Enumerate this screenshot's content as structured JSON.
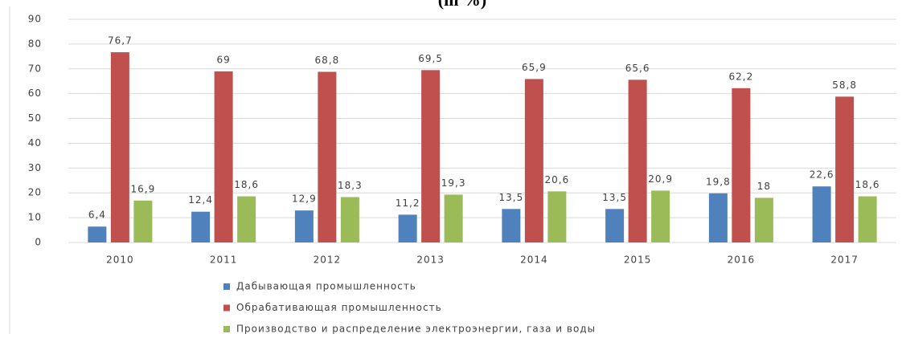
{
  "chart_data": {
    "type": "bar",
    "title": "(in %)",
    "categories": [
      "2010",
      "2011",
      "2012",
      "2013",
      "2014",
      "2015",
      "2016",
      "2017"
    ],
    "series": [
      {
        "name": "Дабывающая промышленность",
        "color": "#4f81bd",
        "values": [
          6.4,
          12.4,
          12.9,
          11.2,
          13.5,
          13.5,
          19.8,
          22.6
        ],
        "value_labels": [
          "6,4",
          "12,4",
          "12,9",
          "11,2",
          "13,5",
          "13,5",
          "19,8",
          "22,6"
        ]
      },
      {
        "name": "Обрабативающая промышленность",
        "color": "#c0504d",
        "values": [
          76.7,
          69,
          68.8,
          69.5,
          65.9,
          65.6,
          62.2,
          58.8
        ],
        "value_labels": [
          "76,7",
          "69",
          "68,8",
          "69,5",
          "65,9",
          "65,6",
          "62,2",
          "58,8"
        ]
      },
      {
        "name": "Производство и распределение электроэнергии, газа и воды",
        "color": "#9bbb59",
        "values": [
          16.9,
          18.6,
          18.3,
          19.3,
          20.6,
          20.9,
          18,
          18.6
        ],
        "value_labels": [
          "16,9",
          "18,6",
          "18,3",
          "19,3",
          "20,6",
          "20,9",
          "18",
          "18,6"
        ]
      }
    ],
    "ylim": [
      0,
      90
    ],
    "yticks": [
      0,
      10,
      20,
      30,
      40,
      50,
      60,
      70,
      80,
      90
    ],
    "grid": true,
    "legend": "bottom"
  }
}
